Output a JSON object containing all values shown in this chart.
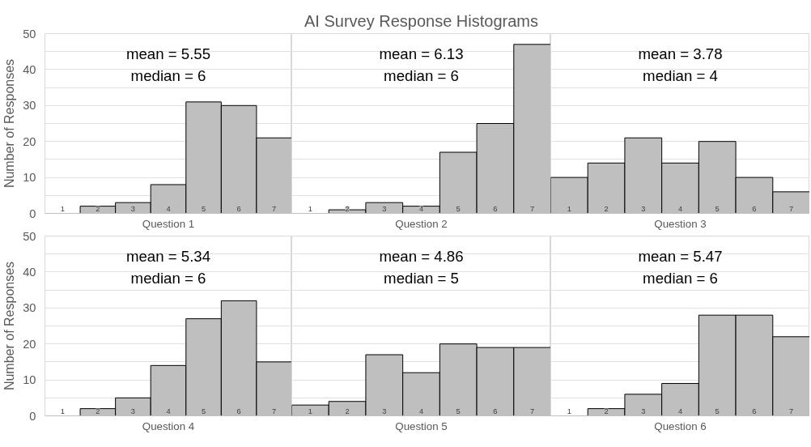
{
  "chart_data": [
    {
      "type": "bar",
      "categories": [
        "1",
        "2",
        "3",
        "4",
        "5",
        "6",
        "7"
      ],
      "values": [
        0,
        2,
        3,
        8,
        31,
        30,
        21
      ],
      "color": "#bfbfbf",
      "xlabel": "Question 1",
      "ylabel": "Number of Responses",
      "annotations": [
        "mean = 5.55",
        "median = 6"
      ],
      "ylim": [
        0,
        50
      ],
      "yticks": [
        0,
        {
          "value": 5,
          "label": null
        },
        10,
        {
          "value": 15,
          "label": null
        },
        20,
        {
          "value": 25,
          "label": null
        },
        30,
        {
          "value": 35,
          "label": null
        },
        40,
        {
          "value": 45,
          "label": null
        },
        50
      ],
      "grid": "y"
    },
    {
      "type": "bar",
      "title": "AI Survey Response Histograms",
      "categories": [
        "1",
        "2",
        "3",
        "4",
        "5",
        "6",
        "7"
      ],
      "values": [
        0,
        1,
        3,
        2,
        17,
        25,
        47
      ],
      "color": "#bfbfbf",
      "xlabel": "Question 2",
      "annotations": [
        "mean = 6.13",
        "median = 6"
      ],
      "ylim": [
        0,
        50
      ],
      "yticks": [
        0,
        {
          "value": 5,
          "label": null
        },
        10,
        {
          "value": 15,
          "label": null
        },
        20,
        {
          "value": 25,
          "label": null
        },
        30,
        {
          "value": 35,
          "label": null
        },
        40,
        {
          "value": 45,
          "label": null
        },
        50
      ],
      "grid": "y",
      "tick_labels": "x"
    },
    {
      "type": "bar",
      "categories": [
        "1",
        "2",
        "3",
        "4",
        "5",
        "6",
        "7"
      ],
      "values": [
        10,
        14,
        21,
        14,
        20,
        10,
        6
      ],
      "color": "#bfbfbf",
      "xlabel": "Question 3",
      "annotations": [
        "mean = 3.78",
        "median = 4"
      ],
      "ylim": [
        0,
        50
      ],
      "yticks": [
        0,
        {
          "value": 5,
          "label": null
        },
        10,
        {
          "value": 15,
          "label": null
        },
        20,
        {
          "value": 25,
          "label": null
        },
        30,
        {
          "value": 35,
          "label": null
        },
        40,
        {
          "value": 45,
          "label": null
        },
        50
      ],
      "grid": "y",
      "tick_labels": "x"
    },
    {
      "type": "bar",
      "categories": [
        "1",
        "2",
        "3",
        "4",
        "5",
        "6",
        "7"
      ],
      "values": [
        0,
        2,
        5,
        14,
        27,
        32,
        15
      ],
      "color": "#bfbfbf",
      "xlabel": "Question 4",
      "ylabel": "Number of Responses",
      "annotations": [
        "mean = 5.34",
        "median = 6"
      ],
      "ylim": [
        0,
        50
      ],
      "yticks": [
        0,
        {
          "value": 5,
          "label": null
        },
        10,
        {
          "value": 15,
          "label": null
        },
        20,
        {
          "value": 25,
          "label": null
        },
        30,
        {
          "value": 35,
          "label": null
        },
        40,
        {
          "value": 45,
          "label": null
        },
        50
      ],
      "grid": "y"
    },
    {
      "type": "bar",
      "categories": [
        "1",
        "2",
        "3",
        "4",
        "5",
        "6",
        "7"
      ],
      "values": [
        3,
        4,
        17,
        12,
        20,
        19,
        19
      ],
      "color": "#bfbfbf",
      "xlabel": "Question 5",
      "annotations": [
        "mean = 4.86",
        "median = 5"
      ],
      "ylim": [
        0,
        50
      ],
      "yticks": [
        0,
        {
          "value": 5,
          "label": null
        },
        10,
        {
          "value": 15,
          "label": null
        },
        20,
        {
          "value": 25,
          "label": null
        },
        30,
        {
          "value": 35,
          "label": null
        },
        40,
        {
          "value": 45,
          "label": null
        },
        50
      ],
      "grid": "y",
      "tick_labels": "x"
    },
    {
      "type": "bar",
      "categories": [
        "1",
        "2",
        "3",
        "4",
        "5",
        "6",
        "7"
      ],
      "values": [
        0,
        2,
        6,
        9,
        28,
        28,
        22
      ],
      "color": "#bfbfbf",
      "xlabel": "Question 6",
      "annotations": [
        "mean = 5.47",
        "median = 6"
      ],
      "ylim": [
        0,
        50
      ],
      "yticks": [
        0,
        {
          "value": 5,
          "label": null
        },
        10,
        {
          "value": 15,
          "label": null
        },
        20,
        {
          "value": 25,
          "label": null
        },
        30,
        {
          "value": 35,
          "label": null
        },
        40,
        {
          "value": 45,
          "label": null
        },
        50
      ],
      "grid": "y",
      "tick_labels": "x"
    }
  ]
}
